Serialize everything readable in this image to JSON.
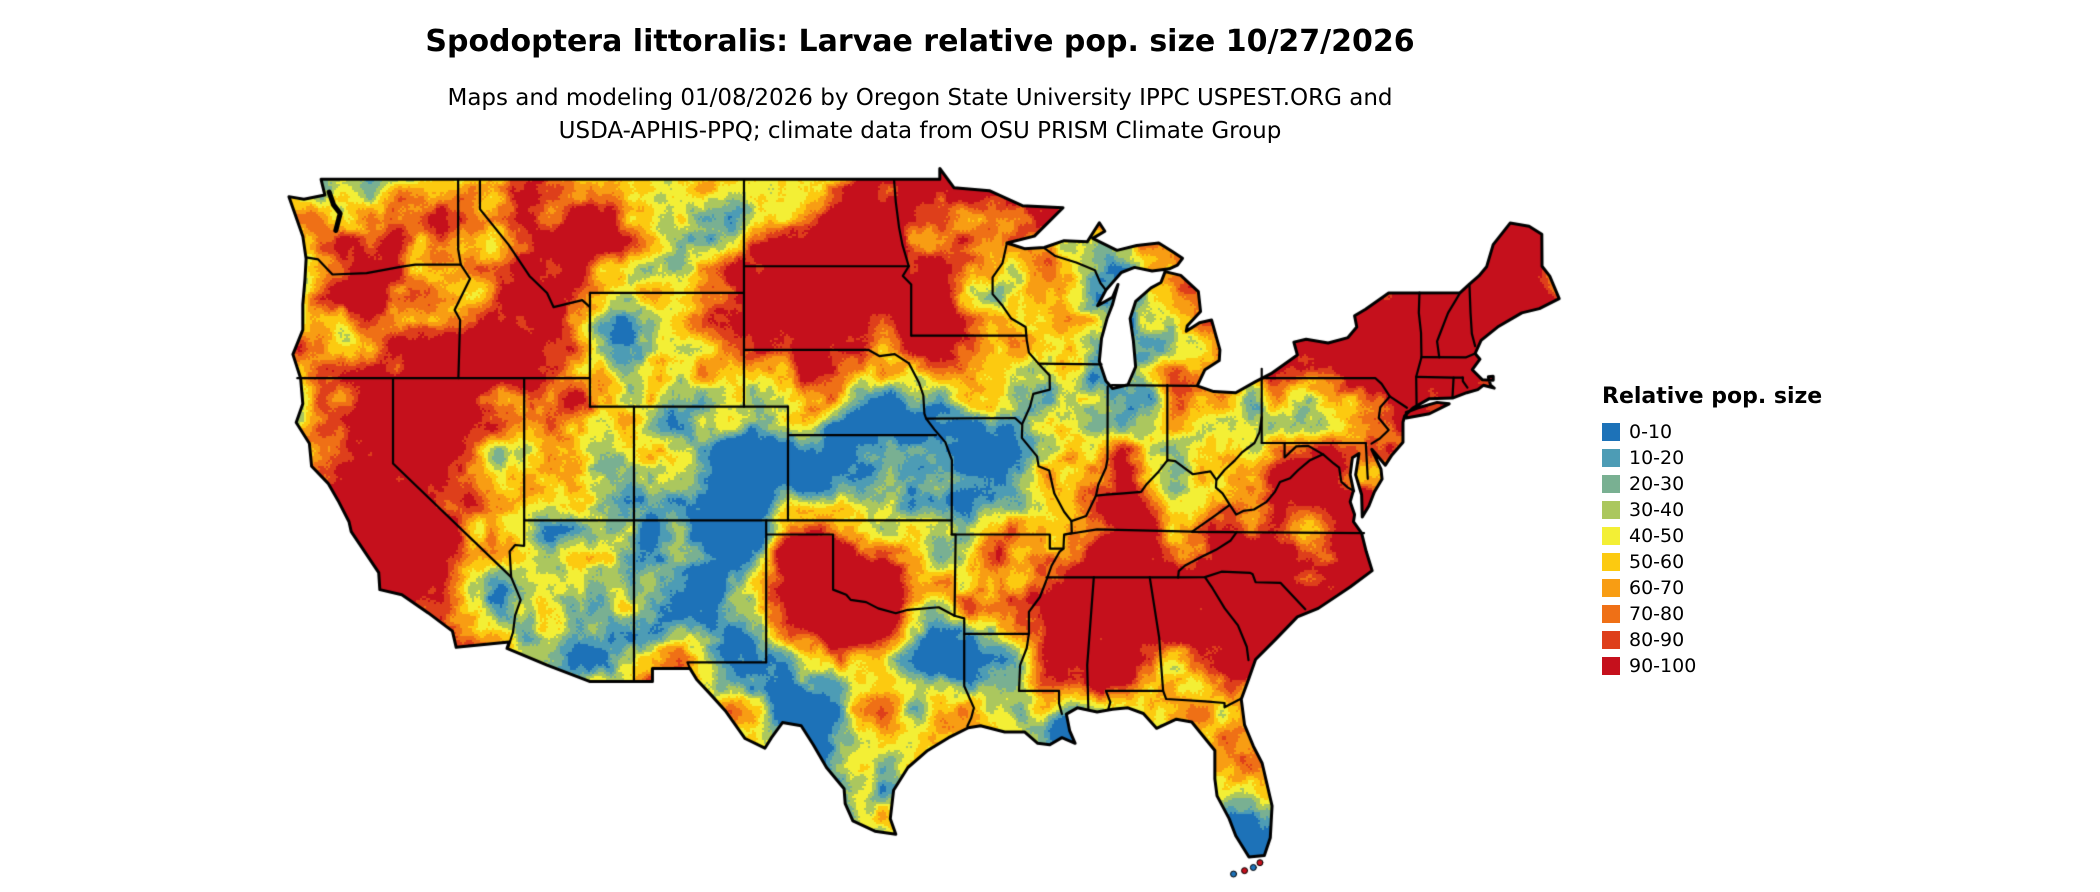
{
  "header": {
    "title": "Spodoptera littoralis: Larvae relative pop. size 10/27/2026",
    "subtitle_line1": "Maps and modeling 01/08/2026 by Oregon State University IPPC USPEST.ORG and",
    "subtitle_line2": "USDA-APHIS-PPQ; climate data from OSU PRISM Climate Group"
  },
  "legend": {
    "title": "Relative pop. size",
    "items": [
      {
        "label": "0-10",
        "color": "#1d72b8"
      },
      {
        "label": "10-20",
        "color": "#4d9cb5"
      },
      {
        "label": "20-30",
        "color": "#79b092"
      },
      {
        "label": "30-40",
        "color": "#abc75e"
      },
      {
        "label": "40-50",
        "color": "#f3ef35"
      },
      {
        "label": "50-60",
        "color": "#fcca10"
      },
      {
        "label": "60-70",
        "color": "#f89d13"
      },
      {
        "label": "70-80",
        "color": "#ef7016"
      },
      {
        "label": "80-90",
        "color": "#de3f1b"
      },
      {
        "label": "90-100",
        "color": "#c5101c"
      }
    ]
  },
  "map": {
    "region": "conterminous-united-states",
    "border_color": "#000000",
    "water_color": "#ffffff"
  }
}
